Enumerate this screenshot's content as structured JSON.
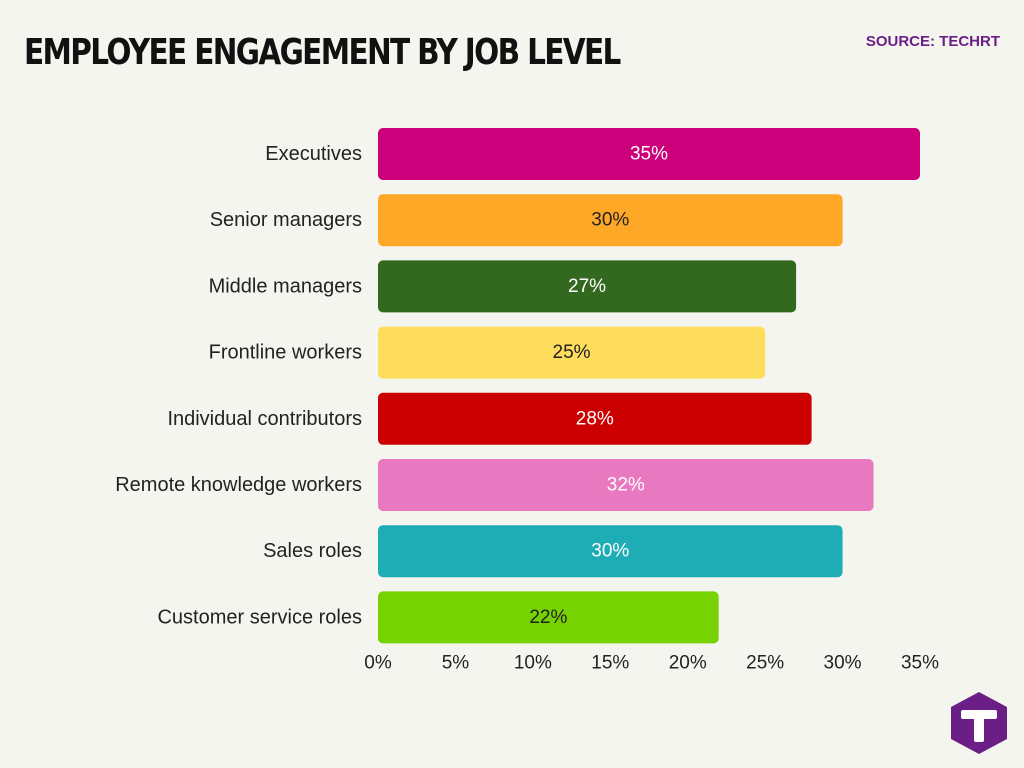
{
  "header": {
    "title": "EMPLOYEE ENGAGEMENT BY JOB LEVEL",
    "source": "SOURCE: TECHRT"
  },
  "chart_data": {
    "type": "bar",
    "orientation": "horizontal",
    "title": "EMPLOYEE ENGAGEMENT BY JOB LEVEL",
    "xlabel": "",
    "ylabel": "",
    "xlim": [
      0,
      35
    ],
    "x_ticks": [
      0,
      5,
      10,
      15,
      20,
      25,
      30,
      35
    ],
    "tick_suffix": "%",
    "grid": false,
    "legend": "none",
    "categories": [
      "Executives",
      "Senior managers",
      "Middle managers",
      "Frontline workers",
      "Individual contributors",
      "Remote knowledge workers",
      "Sales roles",
      "Customer service roles"
    ],
    "values": [
      35,
      30,
      27,
      25,
      28,
      32,
      30,
      22
    ],
    "value_labels": [
      "35%",
      "30%",
      "27%",
      "25%",
      "28%",
      "32%",
      "30%",
      "22%"
    ],
    "colors": [
      "#cc007a",
      "#ffa726",
      "#33691e",
      "#ffdd5c",
      "#cc0000",
      "#e879c0",
      "#1fadb5",
      "#76d200"
    ],
    "label_colors": [
      "#ffffff",
      "#222222",
      "#ffffff",
      "#222222",
      "#ffffff",
      "#ffffff",
      "#ffffff",
      "#222222"
    ]
  },
  "logo": {
    "icon": "techrt-logo-icon",
    "background": "#6b1f86"
  }
}
